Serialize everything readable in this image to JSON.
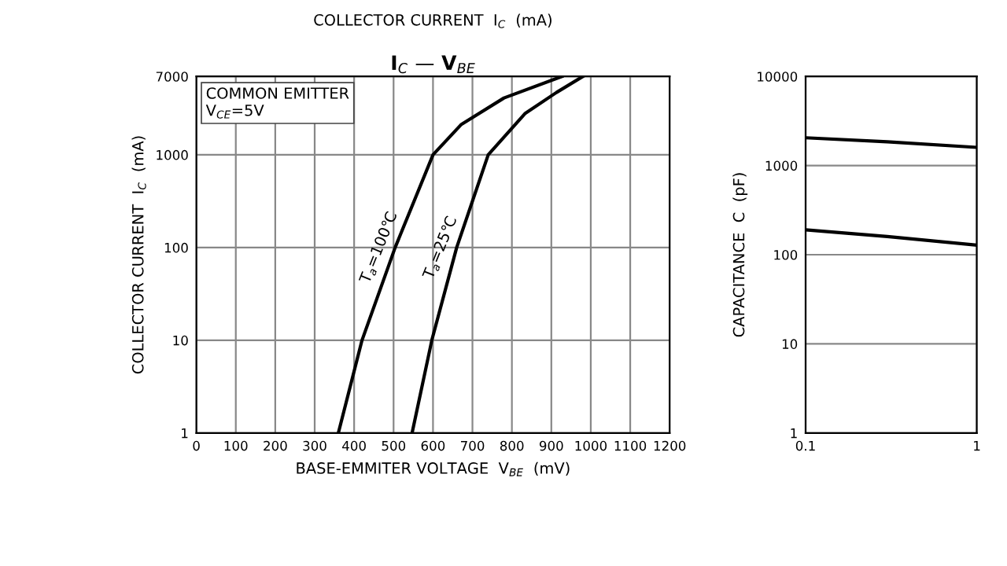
{
  "chart_data": [
    {
      "type": "line",
      "title": "I$_{C}$ — V$_{BE}$",
      "xlabel": "BASE-EMMITER VOLTAGE  V$_{BE}$  (mV)",
      "ylabel": "COLLECTOR CURRENT  I$_{C}$  (mA)",
      "log": "y",
      "xlim": [
        0,
        1200
      ],
      "xticks": [
        0,
        100,
        200,
        300,
        400,
        500,
        600,
        700,
        800,
        900,
        1000,
        1100,
        1200
      ],
      "ylim": [
        1,
        7000
      ],
      "yticks": [
        1,
        10,
        100,
        1000,
        7000
      ],
      "grid": true,
      "line_style": "solid",
      "annotations": [
        "COLLECTOR CURRENT  I$_{C}$  (mA)",
        "COMMON EMITTER\nV$_{CE}$=5V"
      ],
      "series": [
        {
          "name": "T$_{a}$=100℃",
          "color": "#000000",
          "x": [
            360,
            420,
            504,
            600,
            672,
            780,
            927
          ],
          "values": [
            1,
            10,
            100,
            1000,
            2130,
            4100,
            7000
          ]
        },
        {
          "name": "T$_{a}$=25℃",
          "color": "#000000",
          "x": [
            547,
            597,
            660,
            740,
            833,
            913,
            980
          ],
          "values": [
            1,
            10,
            100,
            1000,
            2780,
            4700,
            7000
          ]
        }
      ]
    },
    {
      "type": "line",
      "ylabel": "CAPACITANCE  C  (pF)",
      "log": "xy",
      "xlim": [
        0.1,
        1
      ],
      "xticks": [
        0.1,
        1
      ],
      "ylim": [
        1,
        10000
      ],
      "yticks": [
        1,
        10,
        100,
        1000,
        10000
      ],
      "grid": true,
      "line_style": "solid",
      "series": [
        {
          "color": "#000000",
          "x": [
            0.1,
            0.3,
            1
          ],
          "values": [
            2050,
            1850,
            1600
          ]
        },
        {
          "color": "#000000",
          "x": [
            0.1,
            0.3,
            1
          ],
          "values": [
            190,
            160,
            128
          ]
        }
      ]
    }
  ]
}
